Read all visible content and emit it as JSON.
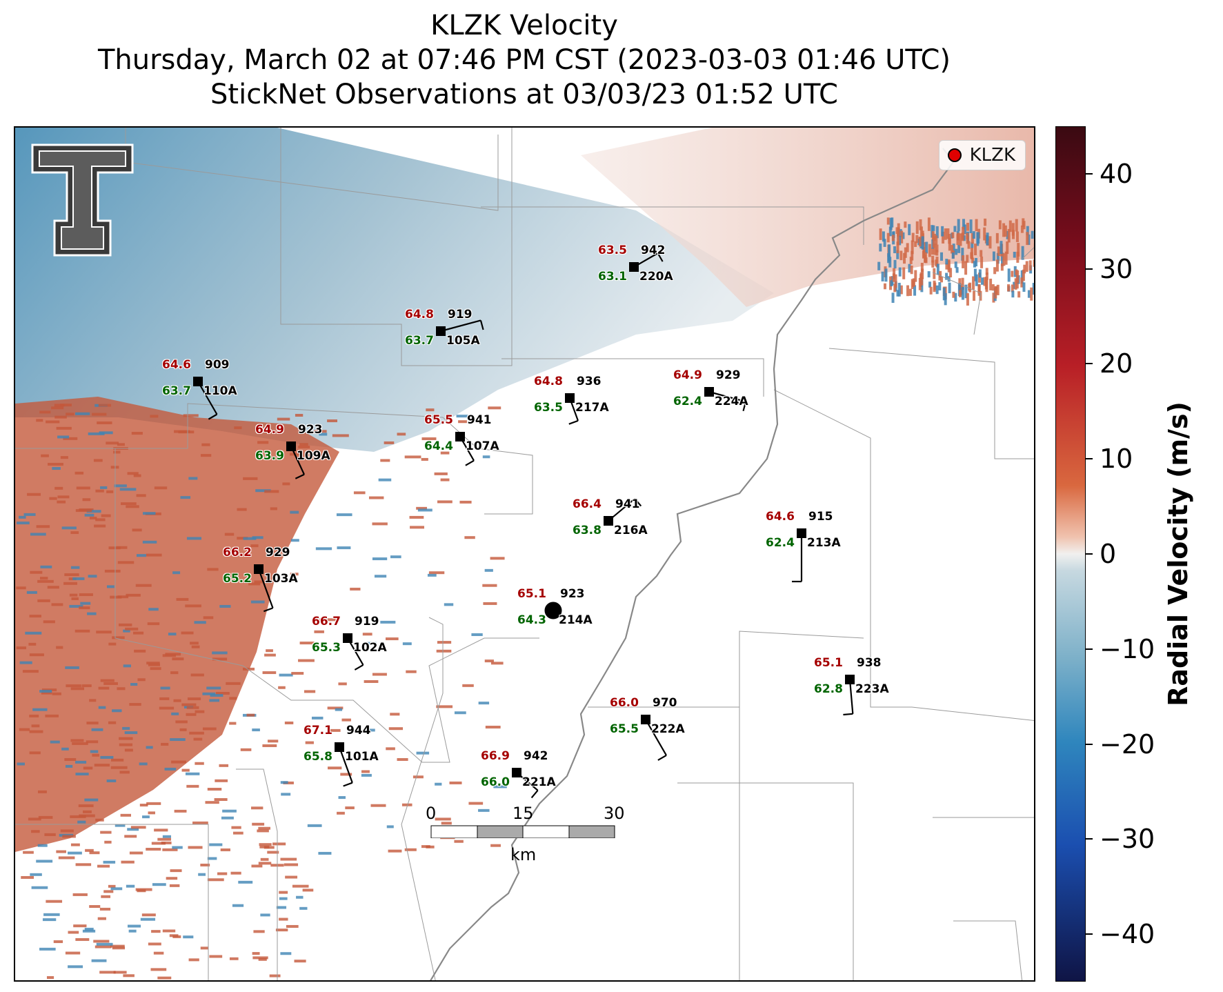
{
  "title": {
    "line1": "KLZK Velocity",
    "line2": "Thursday, March 02 at 07:46 PM CST (2023-03-03 01:46 UTC)",
    "line3": "StickNet Observations at 03/03/23 01:52 UTC"
  },
  "legend": {
    "label": "KLZK",
    "marker_color": "#e00000"
  },
  "scale_bar": {
    "ticks": [
      "0",
      "15",
      "30"
    ],
    "unit": "km"
  },
  "colorbar": {
    "label": "Radial Velocity (m/s)",
    "min": -45,
    "max": 45,
    "ticks": [
      "40",
      "30",
      "20",
      "10",
      "0",
      "−10",
      "−20",
      "−30",
      "−40"
    ],
    "tick_values": [
      40,
      30,
      20,
      10,
      0,
      -10,
      -20,
      -30,
      -40
    ]
  },
  "logo": {
    "name": "texas-tech-double-t-logo"
  },
  "stations": [
    {
      "id": "220A",
      "temp": "63.5",
      "dew": "63.1",
      "pres": "942"
    },
    {
      "id": "105A",
      "temp": "64.8",
      "dew": "63.7",
      "pres": "919"
    },
    {
      "id": "110A",
      "temp": "64.6",
      "dew": "63.7",
      "pres": "909"
    },
    {
      "id": "217A",
      "temp": "64.8",
      "dew": "63.5",
      "pres": "936"
    },
    {
      "id": "224A",
      "temp": "64.9",
      "dew": "62.4",
      "pres": "929"
    },
    {
      "id": "107A",
      "temp": "65.5",
      "dew": "64.4",
      "pres": "941"
    },
    {
      "id": "109A",
      "temp": "64.9",
      "dew": "63.9",
      "pres": "923"
    },
    {
      "id": "216A",
      "temp": "66.4",
      "dew": "63.8",
      "pres": "941"
    },
    {
      "id": "213A",
      "temp": "64.6",
      "dew": "62.4",
      "pres": "915"
    },
    {
      "id": "103A",
      "temp": "66.2",
      "dew": "65.2",
      "pres": "929"
    },
    {
      "id": "214A",
      "temp": "65.1",
      "dew": "64.3",
      "pres": "923"
    },
    {
      "id": "102A",
      "temp": "66.7",
      "dew": "65.3",
      "pres": "919"
    },
    {
      "id": "223A",
      "temp": "65.1",
      "dew": "62.8",
      "pres": "938"
    },
    {
      "id": "222A",
      "temp": "66.0",
      "dew": "65.5",
      "pres": "970"
    },
    {
      "id": "101A",
      "temp": "67.1",
      "dew": "65.8",
      "pres": "944"
    },
    {
      "id": "221A",
      "temp": "66.9",
      "dew": "66.0",
      "pres": "942"
    }
  ]
}
